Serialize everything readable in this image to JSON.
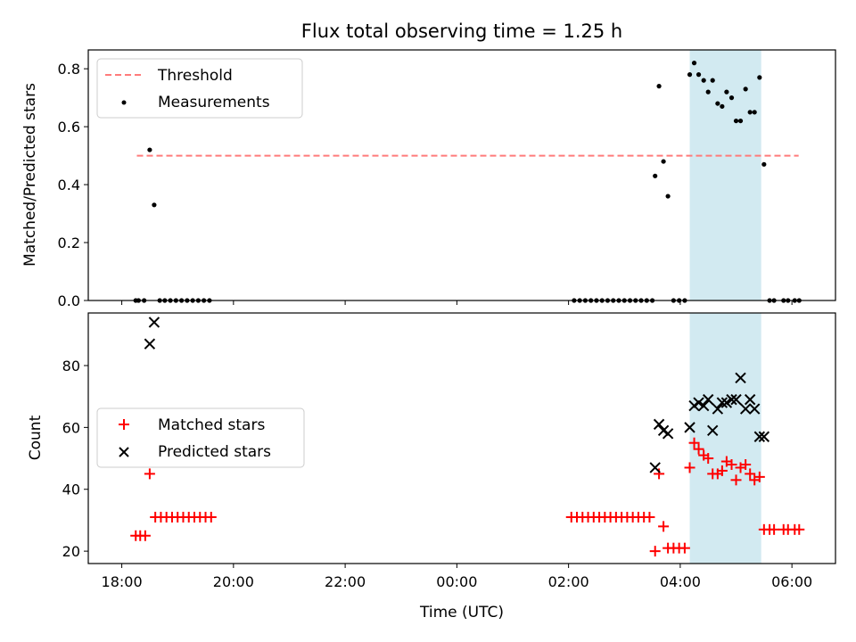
{
  "chart_data": {
    "title": "Flux total observing time = 1.25 h",
    "xlabel": "Time (UTC)",
    "x_unit": "hours since 18:00 UTC",
    "xlim": [
      -0.6,
      12.78
    ],
    "x_ticks": [
      {
        "value": 0,
        "label": "18:00"
      },
      {
        "value": 2,
        "label": "20:00"
      },
      {
        "value": 4,
        "label": "22:00"
      },
      {
        "value": 6,
        "label": "00:00"
      },
      {
        "value": 8,
        "label": "02:00"
      },
      {
        "value": 10,
        "label": "04:00"
      },
      {
        "value": 12,
        "label": "06:00"
      }
    ],
    "highlight_span": [
      10.17,
      11.45
    ],
    "highlight_color": "#add8e6",
    "top": {
      "type": "scatter",
      "ylabel": "Matched/Predicted stars",
      "ylim": [
        0,
        0.865
      ],
      "y_ticks": [
        0,
        0.2,
        0.4,
        0.6,
        0.8
      ],
      "y_tick_labels": [
        "0.0",
        "0.2",
        "0.4",
        "0.6",
        "0.8"
      ],
      "threshold": {
        "name": "Threshold",
        "value": 0.5,
        "x_range": [
          0.27,
          12.12
        ],
        "color": "#ff7b7b"
      },
      "series": [
        {
          "name": "Measurements",
          "color": "#000000",
          "points": [
            [
              0.25,
              0
            ],
            [
              0.3,
              0
            ],
            [
              0.4,
              0
            ],
            [
              0.5,
              0.52
            ],
            [
              0.58,
              0.33
            ],
            [
              0.68,
              0
            ],
            [
              0.77,
              0
            ],
            [
              0.87,
              0
            ],
            [
              0.97,
              0
            ],
            [
              1.07,
              0
            ],
            [
              1.17,
              0
            ],
            [
              1.27,
              0
            ],
            [
              1.37,
              0
            ],
            [
              1.47,
              0
            ],
            [
              1.57,
              0
            ],
            [
              8.1,
              0
            ],
            [
              8.2,
              0
            ],
            [
              8.3,
              0
            ],
            [
              8.4,
              0
            ],
            [
              8.5,
              0
            ],
            [
              8.6,
              0
            ],
            [
              8.7,
              0
            ],
            [
              8.8,
              0
            ],
            [
              8.9,
              0
            ],
            [
              9.0,
              0
            ],
            [
              9.1,
              0
            ],
            [
              9.2,
              0
            ],
            [
              9.3,
              0
            ],
            [
              9.4,
              0
            ],
            [
              9.5,
              0
            ],
            [
              9.55,
              0.43
            ],
            [
              9.62,
              0.74
            ],
            [
              9.7,
              0.48
            ],
            [
              9.78,
              0.36
            ],
            [
              9.88,
              0
            ],
            [
              9.98,
              0
            ],
            [
              10.08,
              0
            ],
            [
              10.17,
              0.78
            ],
            [
              10.25,
              0.82
            ],
            [
              10.33,
              0.78
            ],
            [
              10.42,
              0.76
            ],
            [
              10.5,
              0.72
            ],
            [
              10.58,
              0.76
            ],
            [
              10.67,
              0.68
            ],
            [
              10.75,
              0.67
            ],
            [
              10.83,
              0.72
            ],
            [
              10.92,
              0.7
            ],
            [
              11.0,
              0.62
            ],
            [
              11.08,
              0.62
            ],
            [
              11.17,
              0.73
            ],
            [
              11.25,
              0.65
            ],
            [
              11.33,
              0.65
            ],
            [
              11.42,
              0.77
            ],
            [
              11.5,
              0.47
            ],
            [
              11.6,
              0
            ],
            [
              11.68,
              0
            ],
            [
              11.85,
              0
            ],
            [
              11.93,
              0
            ],
            [
              12.05,
              0
            ],
            [
              12.13,
              0
            ]
          ]
        }
      ],
      "legend": {
        "position": "top-left"
      }
    },
    "bottom": {
      "type": "scatter",
      "ylabel": "Count",
      "ylim": [
        16,
        97
      ],
      "y_ticks": [
        20,
        40,
        60,
        80
      ],
      "y_tick_labels": [
        "20",
        "40",
        "60",
        "80"
      ],
      "series": [
        {
          "name": "Matched stars",
          "marker": "plus",
          "color": "#ff0000",
          "points": [
            [
              0.25,
              25
            ],
            [
              0.33,
              25
            ],
            [
              0.42,
              25
            ],
            [
              0.5,
              45
            ],
            [
              0.6,
              31
            ],
            [
              0.7,
              31
            ],
            [
              0.8,
              31
            ],
            [
              0.9,
              31
            ],
            [
              1.0,
              31
            ],
            [
              1.1,
              31
            ],
            [
              1.2,
              31
            ],
            [
              1.3,
              31
            ],
            [
              1.4,
              31
            ],
            [
              1.5,
              31
            ],
            [
              1.6,
              31
            ],
            [
              8.05,
              31
            ],
            [
              8.15,
              31
            ],
            [
              8.25,
              31
            ],
            [
              8.35,
              31
            ],
            [
              8.45,
              31
            ],
            [
              8.55,
              31
            ],
            [
              8.65,
              31
            ],
            [
              8.75,
              31
            ],
            [
              8.85,
              31
            ],
            [
              8.95,
              31
            ],
            [
              9.05,
              31
            ],
            [
              9.15,
              31
            ],
            [
              9.25,
              31
            ],
            [
              9.35,
              31
            ],
            [
              9.45,
              31
            ],
            [
              9.55,
              20
            ],
            [
              9.62,
              45
            ],
            [
              9.7,
              28
            ],
            [
              9.78,
              21
            ],
            [
              9.88,
              21
            ],
            [
              9.98,
              21
            ],
            [
              10.08,
              21
            ],
            [
              10.17,
              47
            ],
            [
              10.25,
              55
            ],
            [
              10.33,
              53
            ],
            [
              10.42,
              51
            ],
            [
              10.5,
              50
            ],
            [
              10.58,
              45
            ],
            [
              10.67,
              45
            ],
            [
              10.75,
              46
            ],
            [
              10.83,
              49
            ],
            [
              10.92,
              48
            ],
            [
              11.0,
              43
            ],
            [
              11.08,
              47
            ],
            [
              11.17,
              48
            ],
            [
              11.25,
              45
            ],
            [
              11.33,
              43
            ],
            [
              11.42,
              44
            ],
            [
              11.5,
              27
            ],
            [
              11.6,
              27
            ],
            [
              11.68,
              27
            ],
            [
              11.85,
              27
            ],
            [
              11.93,
              27
            ],
            [
              12.05,
              27
            ],
            [
              12.13,
              27
            ]
          ]
        },
        {
          "name": "Predicted stars",
          "marker": "x",
          "color": "#000000",
          "points": [
            [
              0.5,
              87
            ],
            [
              0.58,
              94
            ],
            [
              9.55,
              47
            ],
            [
              9.62,
              61
            ],
            [
              9.7,
              59
            ],
            [
              9.78,
              58
            ],
            [
              10.17,
              60
            ],
            [
              10.25,
              67
            ],
            [
              10.33,
              68
            ],
            [
              10.42,
              67
            ],
            [
              10.5,
              69
            ],
            [
              10.58,
              59
            ],
            [
              10.67,
              66
            ],
            [
              10.75,
              68
            ],
            [
              10.83,
              68
            ],
            [
              10.92,
              69
            ],
            [
              11.0,
              69
            ],
            [
              11.08,
              76
            ],
            [
              11.17,
              66
            ],
            [
              11.25,
              69
            ],
            [
              11.33,
              66
            ],
            [
              11.42,
              57
            ],
            [
              11.5,
              57
            ]
          ]
        }
      ],
      "legend": {
        "position": "center-left"
      }
    }
  }
}
